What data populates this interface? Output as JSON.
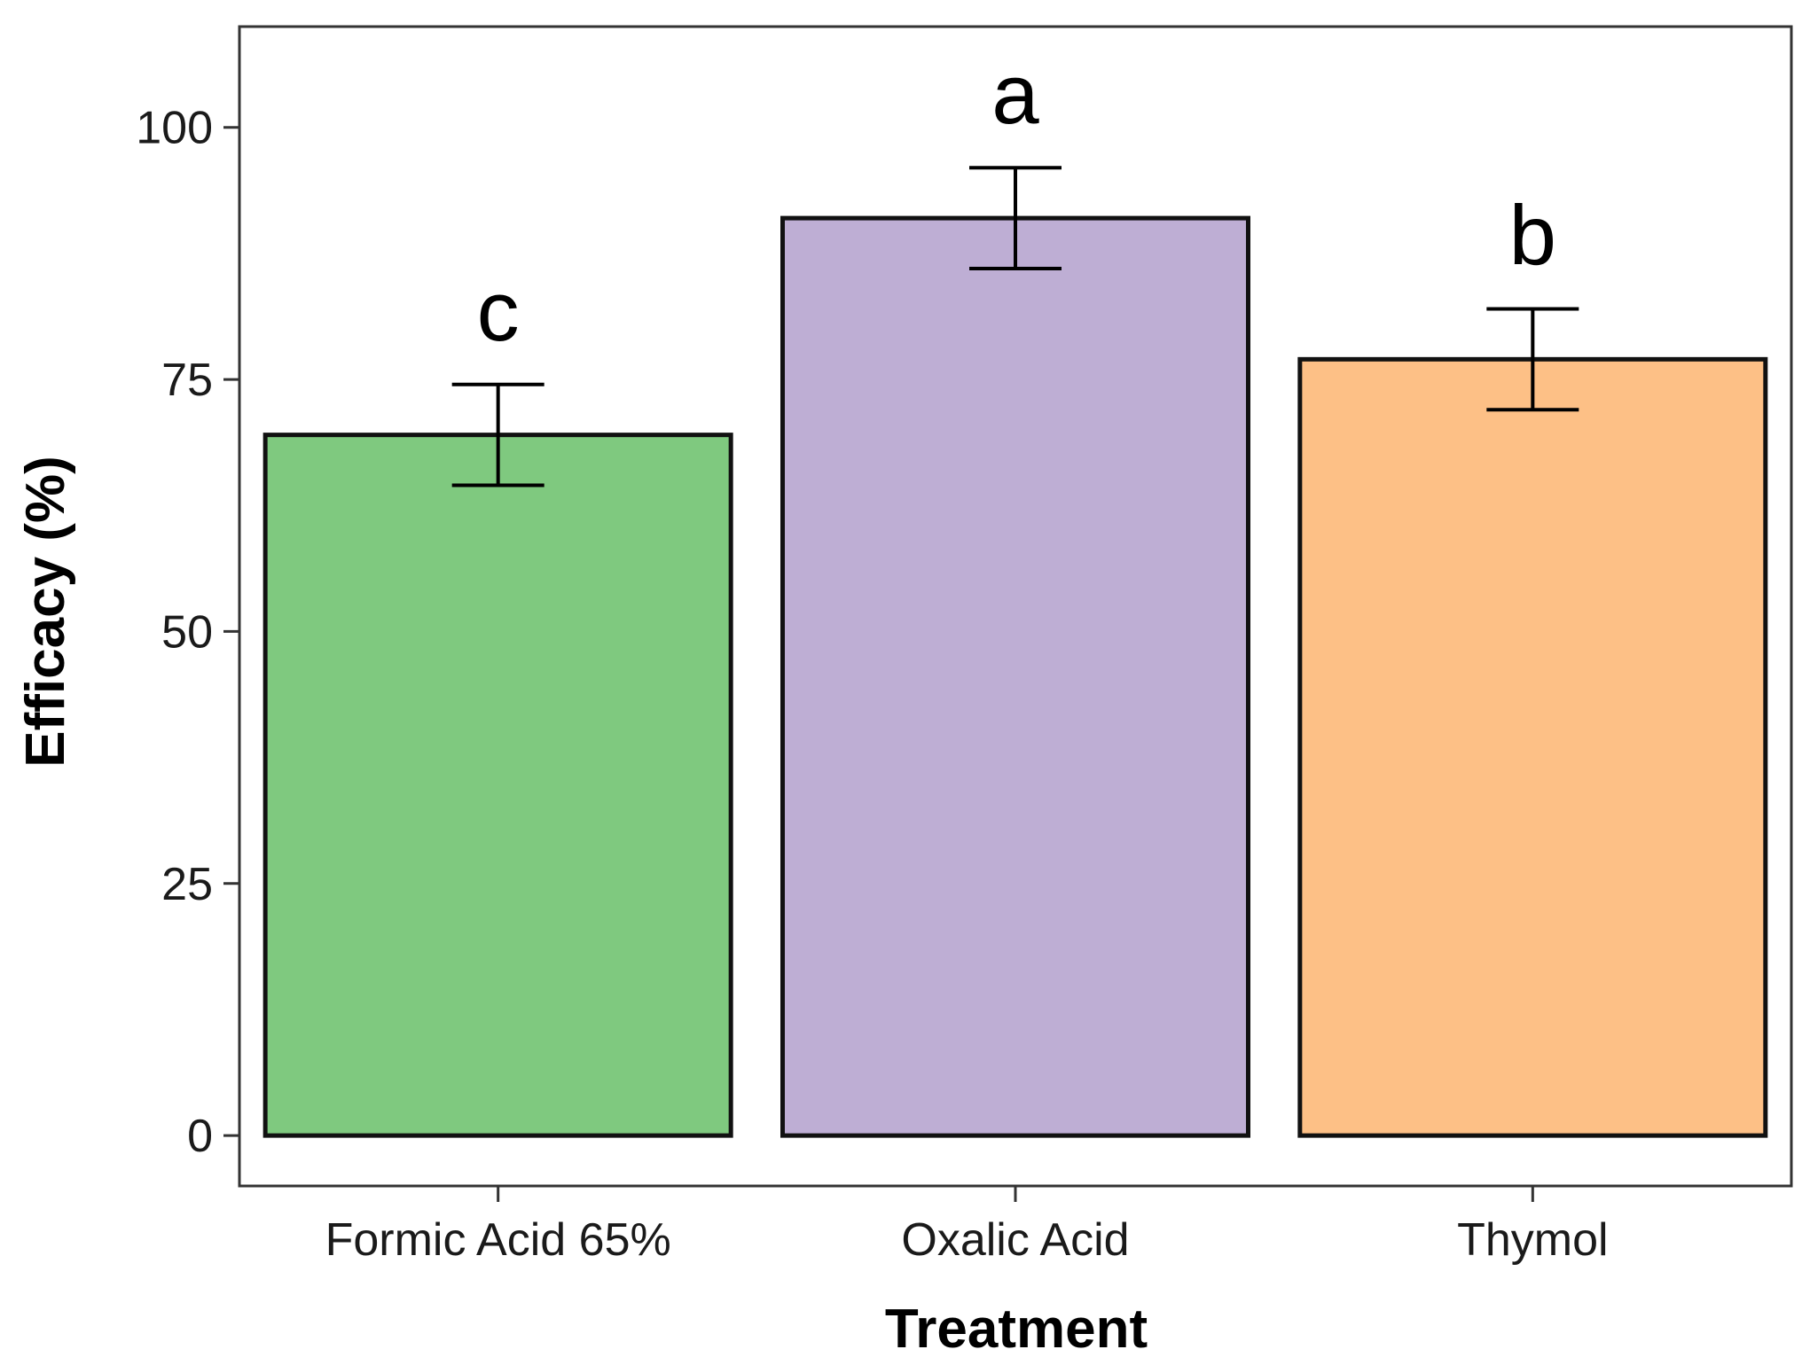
{
  "chart_data": {
    "type": "bar",
    "categories": [
      "Formic Acid 65%",
      "Oxalic Acid",
      "Thymol"
    ],
    "values": [
      69.5,
      91,
      77
    ],
    "error": [
      5,
      5,
      5
    ],
    "significance": [
      "c",
      "a",
      "b"
    ],
    "colors": [
      "#7fc97f",
      "#beaed4",
      "#fdc086"
    ],
    "title": "",
    "xlabel": "Treatment",
    "ylabel": "Efficacy (%)",
    "ylim": [
      -5,
      110
    ],
    "yticks": [
      0,
      25,
      50,
      75,
      100
    ],
    "ytick_labels": [
      "0",
      "25",
      "50",
      "75",
      "100"
    ],
    "grid": false,
    "legend": "none"
  }
}
